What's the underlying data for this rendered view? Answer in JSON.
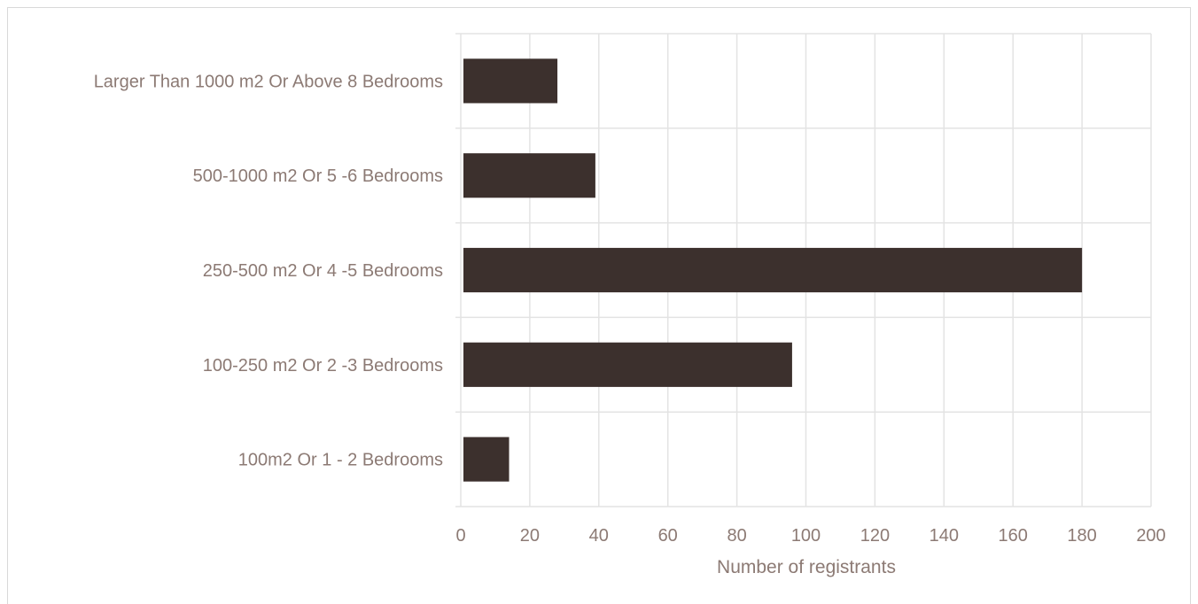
{
  "chart_data": {
    "type": "bar",
    "orientation": "horizontal",
    "categories": [
      "Larger Than 1000 m2 Or Above 8 Bedrooms",
      "500-1000 m2 Or 5 -6 Bedrooms",
      "250-500 m2 Or 4 -5 Bedrooms",
      "100-250 m2 Or 2 -3 Bedrooms",
      "100m2 Or 1 - 2 Bedrooms"
    ],
    "values": [
      28,
      39,
      180,
      96,
      14
    ],
    "xlabel": "Number of registrants",
    "xlim": [
      0,
      200
    ],
    "xticks": [
      0,
      20,
      40,
      60,
      80,
      100,
      120,
      140,
      160,
      180,
      200
    ],
    "grid": true,
    "colors": {
      "bar": "#3c302d",
      "grid": "#e3e3e3",
      "text": "#8c7a74",
      "border": "#d9d9d9"
    }
  }
}
